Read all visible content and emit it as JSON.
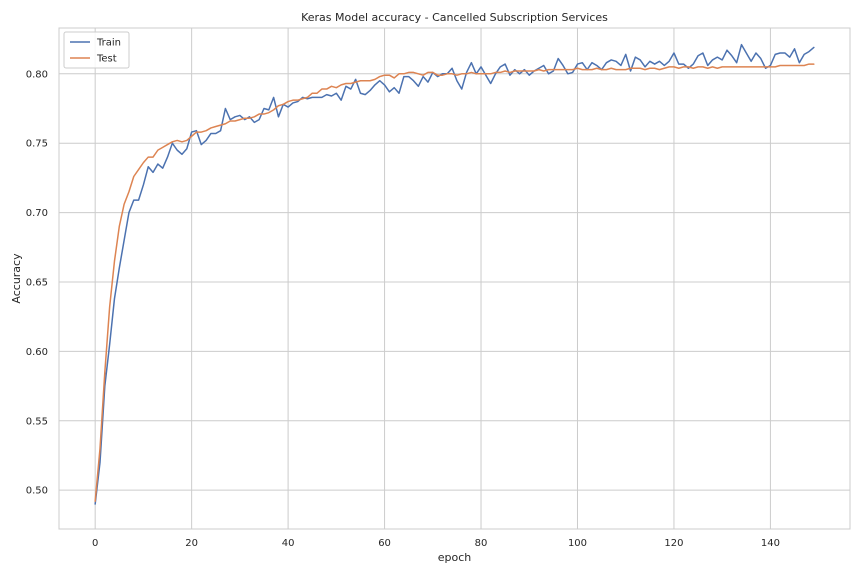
{
  "chart_data": {
    "type": "line",
    "title": "Keras Model accuracy - Cancelled Subscription Services",
    "xlabel": "epoch",
    "ylabel": "Accuracy",
    "xlim": [
      -7.5,
      156.5
    ],
    "ylim": [
      0.472,
      0.833
    ],
    "xticks": [
      0,
      20,
      40,
      60,
      80,
      100,
      120,
      140
    ],
    "yticks": [
      0.5,
      0.55,
      0.6,
      0.65,
      0.7,
      0.75,
      0.8
    ],
    "ytick_labels": [
      "0.50",
      "0.55",
      "0.60",
      "0.65",
      "0.70",
      "0.75",
      "0.80"
    ],
    "grid": true,
    "legend_position": "top-left",
    "series": [
      {
        "name": "Train",
        "color": "#4c72b0",
        "values": [
          0.49,
          0.52,
          0.575,
          0.605,
          0.638,
          0.66,
          0.68,
          0.7,
          0.709,
          0.709,
          0.72,
          0.733,
          0.729,
          0.735,
          0.732,
          0.74,
          0.75,
          0.745,
          0.742,
          0.746,
          0.758,
          0.759,
          0.749,
          0.752,
          0.757,
          0.757,
          0.759,
          0.775,
          0.767,
          0.769,
          0.77,
          0.767,
          0.769,
          0.765,
          0.767,
          0.775,
          0.774,
          0.783,
          0.769,
          0.778,
          0.776,
          0.779,
          0.78,
          0.783,
          0.782,
          0.783,
          0.783,
          0.783,
          0.785,
          0.784,
          0.786,
          0.781,
          0.791,
          0.789,
          0.796,
          0.786,
          0.785,
          0.788,
          0.792,
          0.795,
          0.792,
          0.787,
          0.79,
          0.786,
          0.798,
          0.798,
          0.795,
          0.791,
          0.798,
          0.794,
          0.801,
          0.798,
          0.8,
          0.8,
          0.804,
          0.795,
          0.789,
          0.801,
          0.808,
          0.8,
          0.805,
          0.799,
          0.793,
          0.8,
          0.805,
          0.807,
          0.799,
          0.803,
          0.8,
          0.803,
          0.799,
          0.802,
          0.804,
          0.806,
          0.8,
          0.802,
          0.811,
          0.806,
          0.8,
          0.801,
          0.807,
          0.808,
          0.803,
          0.808,
          0.806,
          0.803,
          0.808,
          0.81,
          0.809,
          0.806,
          0.814,
          0.802,
          0.812,
          0.81,
          0.805,
          0.809,
          0.807,
          0.809,
          0.806,
          0.809,
          0.815,
          0.807,
          0.807,
          0.804,
          0.807,
          0.813,
          0.815,
          0.806,
          0.81,
          0.812,
          0.81,
          0.817,
          0.813,
          0.808,
          0.821,
          0.815,
          0.809,
          0.815,
          0.811,
          0.804,
          0.806,
          0.814,
          0.815,
          0.815,
          0.812,
          0.818,
          0.808,
          0.814,
          0.816,
          0.819
        ]
      },
      {
        "name": "Test",
        "color": "#dd8452",
        "values": [
          0.492,
          0.53,
          0.585,
          0.632,
          0.665,
          0.69,
          0.706,
          0.715,
          0.726,
          0.731,
          0.736,
          0.74,
          0.74,
          0.745,
          0.747,
          0.749,
          0.751,
          0.752,
          0.751,
          0.752,
          0.755,
          0.758,
          0.758,
          0.759,
          0.761,
          0.762,
          0.763,
          0.764,
          0.766,
          0.766,
          0.767,
          0.768,
          0.768,
          0.769,
          0.771,
          0.771,
          0.772,
          0.774,
          0.777,
          0.778,
          0.78,
          0.781,
          0.781,
          0.782,
          0.783,
          0.786,
          0.786,
          0.789,
          0.789,
          0.791,
          0.79,
          0.792,
          0.793,
          0.793,
          0.794,
          0.795,
          0.795,
          0.795,
          0.796,
          0.798,
          0.799,
          0.799,
          0.797,
          0.8,
          0.8,
          0.801,
          0.801,
          0.8,
          0.799,
          0.801,
          0.801,
          0.799,
          0.799,
          0.8,
          0.8,
          0.799,
          0.8,
          0.8,
          0.801,
          0.8,
          0.8,
          0.8,
          0.8,
          0.801,
          0.801,
          0.802,
          0.801,
          0.802,
          0.802,
          0.802,
          0.802,
          0.802,
          0.803,
          0.802,
          0.803,
          0.803,
          0.803,
          0.803,
          0.803,
          0.803,
          0.804,
          0.803,
          0.803,
          0.803,
          0.804,
          0.803,
          0.803,
          0.804,
          0.803,
          0.803,
          0.803,
          0.804,
          0.804,
          0.804,
          0.803,
          0.804,
          0.804,
          0.803,
          0.804,
          0.805,
          0.805,
          0.804,
          0.805,
          0.805,
          0.804,
          0.805,
          0.805,
          0.804,
          0.805,
          0.804,
          0.805,
          0.805,
          0.805,
          0.805,
          0.805,
          0.805,
          0.805,
          0.805,
          0.805,
          0.805,
          0.805,
          0.805,
          0.806,
          0.806,
          0.806,
          0.806,
          0.806,
          0.806,
          0.807,
          0.807
        ]
      }
    ]
  }
}
